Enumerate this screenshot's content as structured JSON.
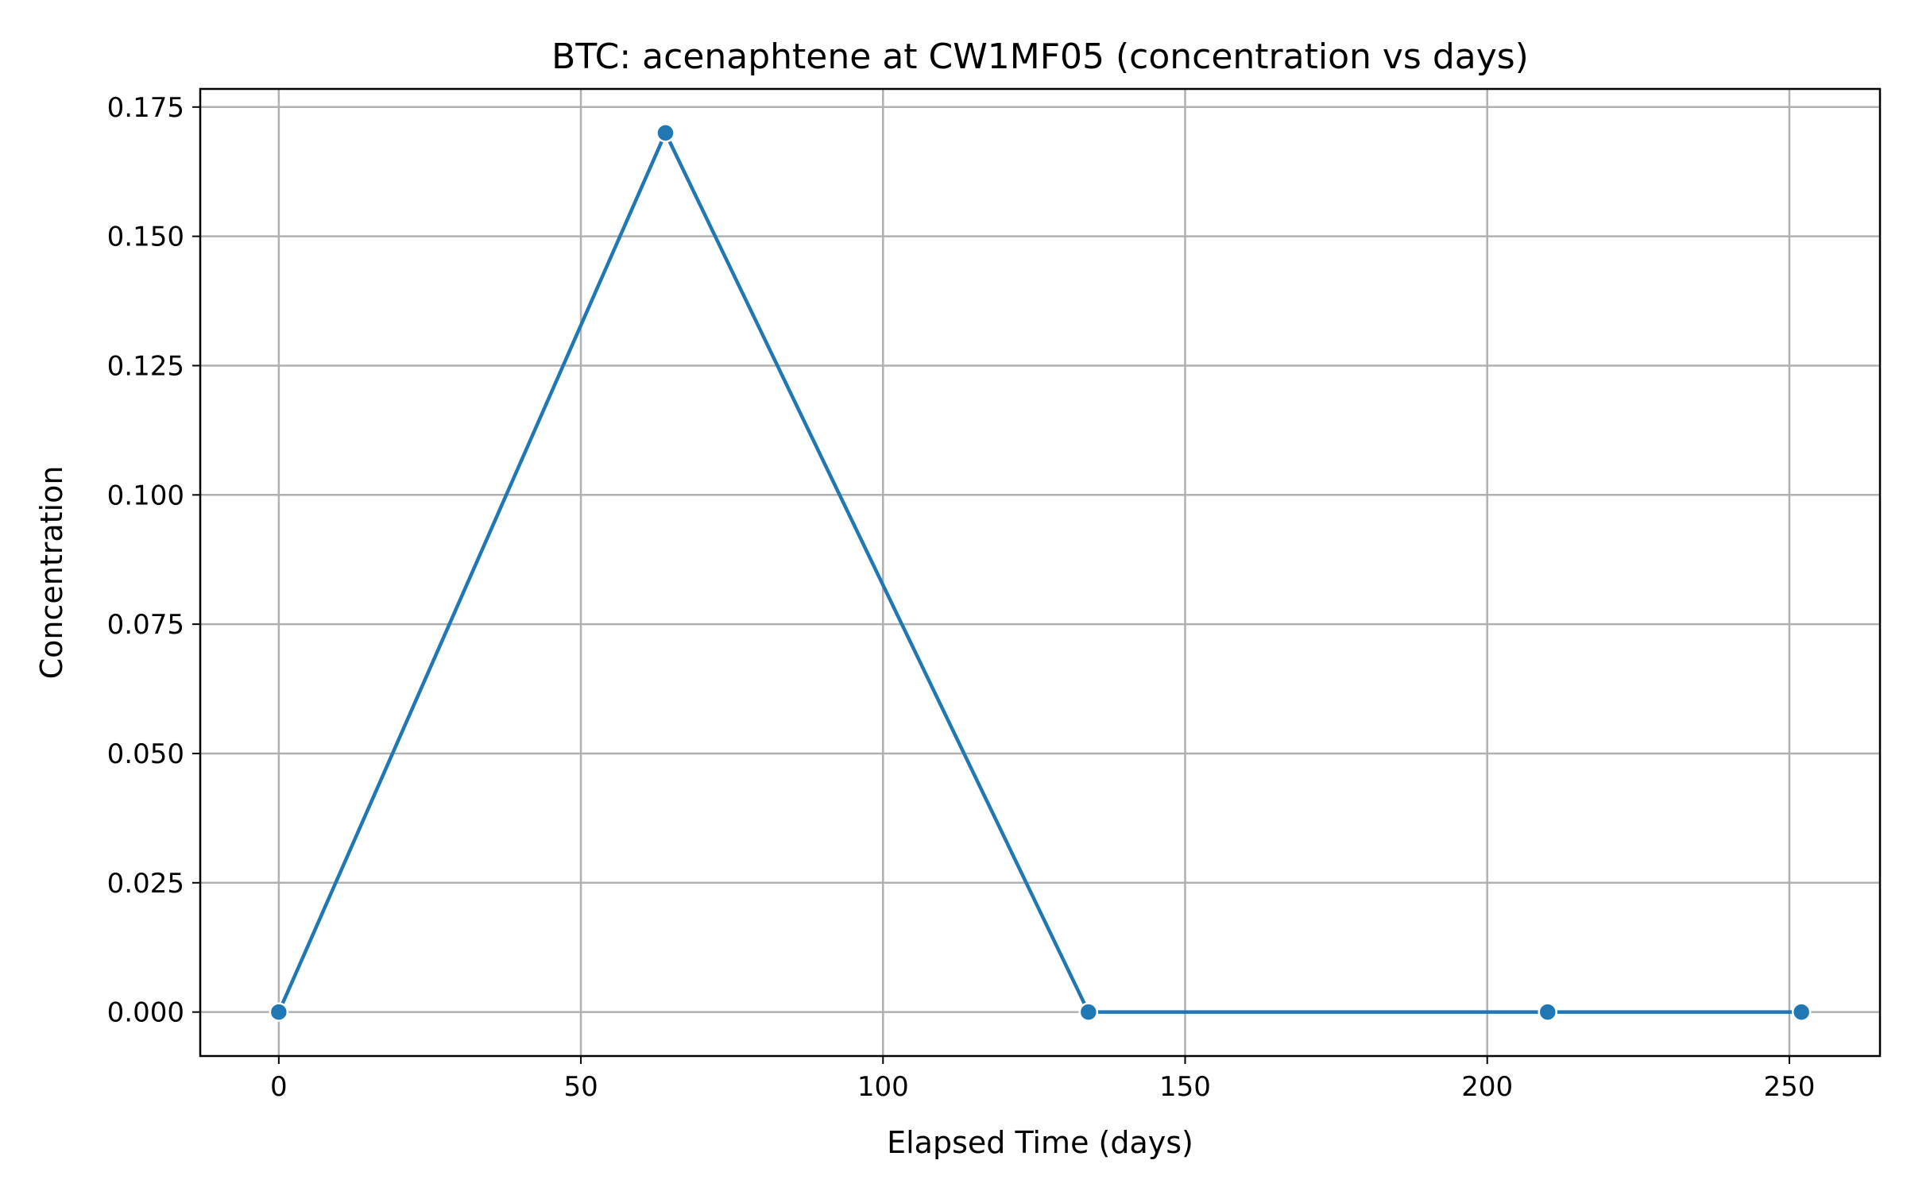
{
  "chart_data": {
    "type": "line",
    "title": "BTC: acenaphtene at CW1MF05 (concentration vs days)",
    "xlabel": "Elapsed Time (days)",
    "ylabel": "Concentration",
    "xlim": [
      -13,
      265
    ],
    "ylim": [
      -0.0085,
      0.1785
    ],
    "x_ticks": [
      0,
      50,
      100,
      150,
      200,
      250
    ],
    "x_tick_labels": [
      "0",
      "50",
      "100",
      "150",
      "200",
      "250"
    ],
    "y_ticks": [
      0,
      0.025,
      0.05,
      0.075,
      0.1,
      0.125,
      0.15,
      0.175
    ],
    "y_tick_labels": [
      "0.000",
      "0.025",
      "0.050",
      "0.075",
      "0.100",
      "0.125",
      "0.150",
      "0.175"
    ],
    "grid": true,
    "legend": false,
    "series": [
      {
        "color": "#1f77b4",
        "marker": "circle",
        "x": [
          0,
          64,
          134,
          210,
          252
        ],
        "y": [
          0.0,
          0.17,
          0.0,
          0.0,
          0.0
        ]
      }
    ]
  }
}
